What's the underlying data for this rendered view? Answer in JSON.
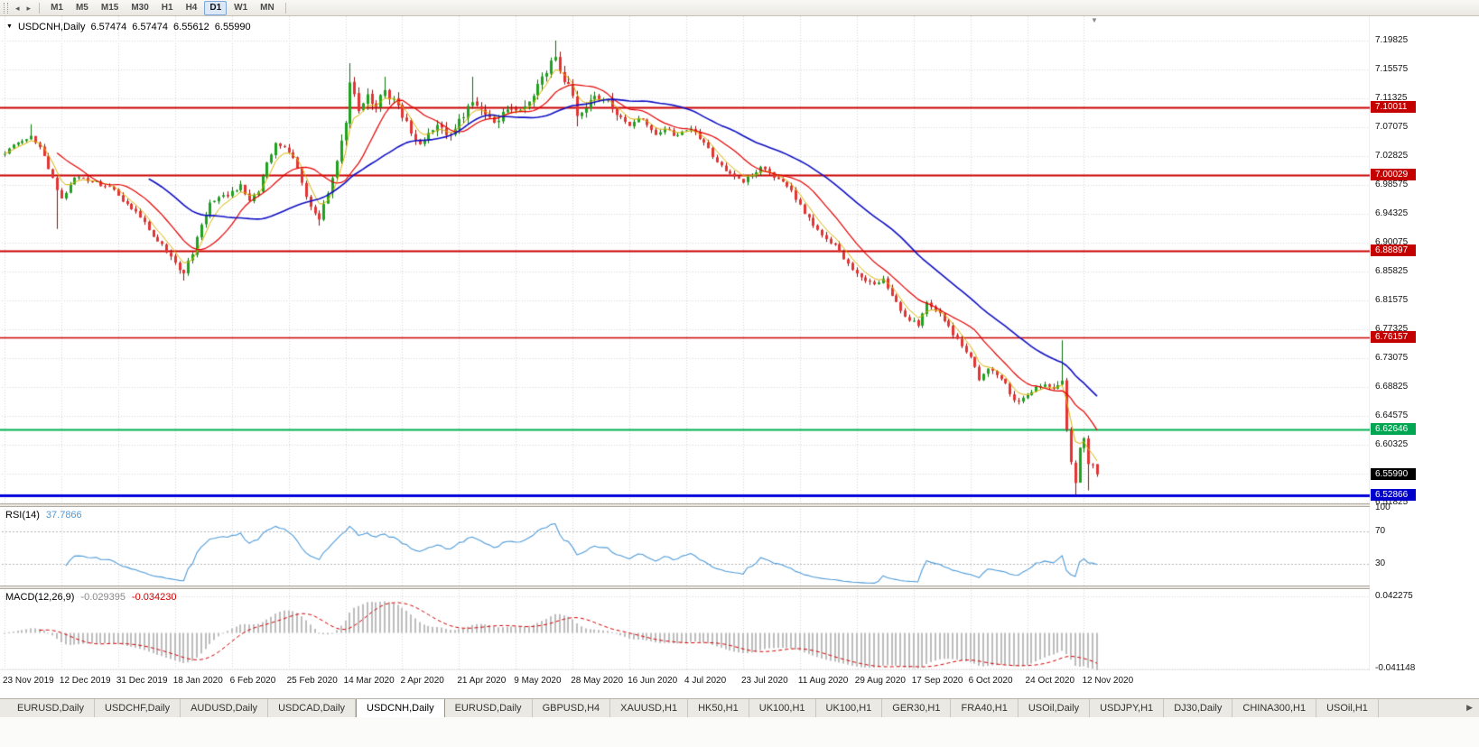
{
  "toolbar": {
    "timeframes": [
      {
        "label": "M1",
        "active": false
      },
      {
        "label": "M5",
        "active": false
      },
      {
        "label": "M15",
        "active": false
      },
      {
        "label": "M30",
        "active": false
      },
      {
        "label": "H1",
        "active": false
      },
      {
        "label": "H4",
        "active": false
      },
      {
        "label": "D1",
        "active": true
      },
      {
        "label": "W1",
        "active": false
      },
      {
        "label": "MN",
        "active": false
      }
    ]
  },
  "icons": {
    "title_arrow": "▼",
    "scroll_left": "◂",
    "scroll_right": "▸",
    "shift_marker": "▼",
    "tab_scroll_right": "▶"
  },
  "chart": {
    "title": {
      "symbol_period": "USDCNH,Daily",
      "open": "6.57474",
      "high": "6.57474",
      "low": "6.55612",
      "close": "6.55990"
    },
    "price_axis_labels": [
      "7.19825",
      "7.15575",
      "7.11325",
      "7.07075",
      "7.02825",
      "6.98575",
      "6.94325",
      "6.90075",
      "6.85825",
      "6.81575",
      "6.77325",
      "6.73075",
      "6.68825",
      "6.64575",
      "6.60325",
      "6.51825"
    ],
    "price_badges": [
      {
        "text": "7.10011",
        "color": "#c40000"
      },
      {
        "text": "7.00029",
        "color": "#c40000"
      },
      {
        "text": "6.88897",
        "color": "#c40000"
      },
      {
        "text": "6.76157",
        "color": "#c40000"
      },
      {
        "text": "6.62646",
        "color": "#00a651"
      },
      {
        "text": "6.55990",
        "color": "#000000"
      },
      {
        "text": "6.52866",
        "color": "#0000cc"
      }
    ],
    "date_labels": [
      "23 Nov 2019",
      "12 Dec 2019",
      "31 Dec 2019",
      "18 Jan 2020",
      "6 Feb 2020",
      "25 Feb 2020",
      "14 Mar 2020",
      "2 Apr 2020",
      "21 Apr 2020",
      "9 May 2020",
      "28 May 2020",
      "16 Jun 2020",
      "4 Jul 2020",
      "23 Jul 2020",
      "11 Aug 2020",
      "29 Aug 2020",
      "17 Sep 2020",
      "6 Oct 2020",
      "24 Oct 2020",
      "12 Nov 2020"
    ],
    "rsi": {
      "label": "RSI(14)",
      "value": "37.7866",
      "color": "#4f9bd8",
      "axis": [
        {
          "text": "100",
          "value": 100
        },
        {
          "text": "70",
          "value": 70
        },
        {
          "text": "30",
          "value": 30
        }
      ]
    },
    "macd": {
      "label": "MACD(12,26,9)",
      "value_main": "-0.029395",
      "value_signal": "-0.034230",
      "hist_color": "#bdbdbd",
      "signal_color": "#d40000",
      "axis": [
        {
          "text": "0.042275",
          "value": 0.042275
        },
        {
          "text": "-0.041148",
          "value": -0.041148
        }
      ]
    }
  },
  "chart_data": {
    "type": "candlestick",
    "symbol": "USDCNH",
    "period": "Daily",
    "bars": 251,
    "price_axis_top": 7.19825,
    "price_axis_step": 0.0425,
    "price_axis_bottom": 6.51825,
    "anchors": [
      [
        0,
        7.032
      ],
      [
        3,
        7.048
      ],
      [
        6,
        7.058
      ],
      [
        9,
        7.028
      ],
      [
        12,
        6.978
      ],
      [
        13,
        6.966
      ],
      [
        16,
        6.996
      ],
      [
        20,
        6.99
      ],
      [
        24,
        6.984
      ],
      [
        27,
        6.962
      ],
      [
        30,
        6.946
      ],
      [
        33,
        6.92
      ],
      [
        36,
        6.898
      ],
      [
        39,
        6.872
      ],
      [
        41,
        6.856
      ],
      [
        43,
        6.884
      ],
      [
        45,
        6.928
      ],
      [
        47,
        6.96
      ],
      [
        50,
        6.97
      ],
      [
        52,
        6.976
      ],
      [
        54,
        6.986
      ],
      [
        56,
        6.962
      ],
      [
        58,
        6.976
      ],
      [
        60,
        7.018
      ],
      [
        62,
        7.048
      ],
      [
        64,
        7.042
      ],
      [
        66,
        7.026
      ],
      [
        68,
        6.988
      ],
      [
        70,
        6.954
      ],
      [
        72,
        6.934
      ],
      [
        74,
        6.974
      ],
      [
        76,
        7.02
      ],
      [
        78,
        7.078
      ],
      [
        79,
        7.138
      ],
      [
        81,
        7.096
      ],
      [
        83,
        7.118
      ],
      [
        85,
        7.102
      ],
      [
        87,
        7.124
      ],
      [
        89,
        7.114
      ],
      [
        91,
        7.086
      ],
      [
        93,
        7.062
      ],
      [
        95,
        7.046
      ],
      [
        97,
        7.064
      ],
      [
        99,
        7.074
      ],
      [
        101,
        7.06
      ],
      [
        103,
        7.068
      ],
      [
        105,
        7.084
      ],
      [
        107,
        7.108
      ],
      [
        109,
        7.098
      ],
      [
        111,
        7.086
      ],
      [
        113,
        7.08
      ],
      [
        115,
        7.098
      ],
      [
        117,
        7.094
      ],
      [
        119,
        7.102
      ],
      [
        121,
        7.118
      ],
      [
        123,
        7.144
      ],
      [
        125,
        7.168
      ],
      [
        126,
        7.174
      ],
      [
        127,
        7.154
      ],
      [
        129,
        7.134
      ],
      [
        131,
        7.088
      ],
      [
        133,
        7.098
      ],
      [
        135,
        7.118
      ],
      [
        137,
        7.112
      ],
      [
        139,
        7.098
      ],
      [
        141,
        7.086
      ],
      [
        143,
        7.072
      ],
      [
        145,
        7.084
      ],
      [
        147,
        7.074
      ],
      [
        149,
        7.06
      ],
      [
        151,
        7.068
      ],
      [
        153,
        7.058
      ],
      [
        155,
        7.064
      ],
      [
        157,
        7.068
      ],
      [
        159,
        7.054
      ],
      [
        161,
        7.04
      ],
      [
        163,
        7.02
      ],
      [
        165,
        7.006
      ],
      [
        167,
        6.998
      ],
      [
        169,
        6.99
      ],
      [
        171,
        7.0
      ],
      [
        173,
        7.012
      ],
      [
        175,
        7.004
      ],
      [
        177,
        6.994
      ],
      [
        179,
        6.984
      ],
      [
        181,
        6.964
      ],
      [
        183,
        6.944
      ],
      [
        185,
        6.926
      ],
      [
        187,
        6.912
      ],
      [
        189,
        6.9
      ],
      [
        191,
        6.888
      ],
      [
        193,
        6.87
      ],
      [
        195,
        6.856
      ],
      [
        197,
        6.844
      ],
      [
        199,
        6.84
      ],
      [
        201,
        6.848
      ],
      [
        203,
        6.822
      ],
      [
        205,
        6.8
      ],
      [
        207,
        6.786
      ],
      [
        209,
        6.778
      ],
      [
        211,
        6.814
      ],
      [
        213,
        6.8
      ],
      [
        215,
        6.786
      ],
      [
        217,
        6.764
      ],
      [
        219,
        6.748
      ],
      [
        221,
        6.732
      ],
      [
        223,
        6.698
      ],
      [
        225,
        6.716
      ],
      [
        227,
        6.706
      ],
      [
        229,
        6.694
      ],
      [
        231,
        6.668
      ],
      [
        233,
        6.672
      ],
      [
        234,
        6.676
      ],
      [
        236,
        6.688
      ],
      [
        238,
        6.692
      ],
      [
        240,
        6.686
      ],
      [
        242,
        6.698
      ],
      [
        243,
        6.626
      ],
      [
        244,
        6.578
      ],
      [
        245,
        6.546
      ],
      [
        246,
        6.598
      ],
      [
        247,
        6.614
      ],
      [
        248,
        6.576
      ],
      [
        249,
        6.5747
      ],
      [
        250,
        6.5599
      ]
    ],
    "specials": {
      "6": {
        "h": 7.075
      },
      "12": {
        "l": 6.921
      },
      "41": {
        "l": 6.845
      },
      "79": {
        "h": 7.165
      },
      "87": {
        "h": 7.145
      },
      "107": {
        "h": 7.145
      },
      "126": {
        "h": 7.19825
      },
      "131": {
        "l": 7.072
      },
      "242": {
        "h": 6.757
      },
      "245": {
        "l": 6.529
      },
      "248": {
        "l": 6.536
      }
    },
    "volatility_bands": [
      [
        0,
        35,
        0.004
      ],
      [
        36,
        56,
        0.0055
      ],
      [
        57,
        71,
        0.005
      ],
      [
        72,
        140,
        0.0085
      ],
      [
        141,
        179,
        0.0042
      ],
      [
        180,
        239,
        0.0048
      ],
      [
        240,
        250,
        0.0062
      ]
    ],
    "last_bar": {
      "o": 6.57474,
      "h": 6.57474,
      "l": 6.55612,
      "c": 6.5599
    },
    "hlines": [
      {
        "price": 7.10011,
        "color": "#cc0000",
        "width": 2
      },
      {
        "price": 7.00029,
        "color": "#cc0000",
        "width": 2
      },
      {
        "price": 6.88897,
        "color": "#cc0000",
        "width": 2
      },
      {
        "price": 6.76157,
        "color": "#cc0000",
        "width": 1.5
      },
      {
        "price": 6.62646,
        "color": "#00b050",
        "width": 2
      },
      {
        "price": 6.52866,
        "color": "#0000dd",
        "width": 3
      }
    ],
    "moving_averages": [
      {
        "period": 5,
        "method": "ema",
        "color": "#d9b300",
        "width": 1
      },
      {
        "period": 13,
        "method": "sma",
        "color": "#e60000",
        "width": 1.2
      },
      {
        "period": 34,
        "method": "sma",
        "color": "#0f0fc4",
        "width": 1.6
      }
    ],
    "candle_colors": {
      "up_fill": "#21a121",
      "up_edge": "#0d6e0d",
      "down_fill": "#e23434",
      "down_edge": "#8f1010"
    },
    "rsi_period": 14,
    "rsi_levels": [
      30,
      70
    ],
    "macd_params": [
      12,
      26,
      9
    ],
    "macd_axis_max": 0.042275,
    "macd_axis_min": -0.041148,
    "rng_seed": 20201120
  },
  "tabs": [
    {
      "label": "EURUSD,Daily",
      "active": false
    },
    {
      "label": "USDCHF,Daily",
      "active": false
    },
    {
      "label": "AUDUSD,Daily",
      "active": false
    },
    {
      "label": "USDCAD,Daily",
      "active": false
    },
    {
      "label": "USDCNH,Daily",
      "active": true
    },
    {
      "label": "EURUSD,Daily",
      "active": false
    },
    {
      "label": "GBPUSD,H4",
      "active": false
    },
    {
      "label": "XAUUSD,H1",
      "active": false
    },
    {
      "label": "HK50,H1",
      "active": false
    },
    {
      "label": "UK100,H1",
      "active": false
    },
    {
      "label": "UK100,H1",
      "active": false
    },
    {
      "label": "GER30,H1",
      "active": false
    },
    {
      "label": "FRA40,H1",
      "active": false
    },
    {
      "label": "USOil,Daily",
      "active": false
    },
    {
      "label": "USDJPY,H1",
      "active": false
    },
    {
      "label": "DJ30,Daily",
      "active": false
    },
    {
      "label": "CHINA300,H1",
      "active": false
    },
    {
      "label": "USOil,H1",
      "active": false
    }
  ]
}
